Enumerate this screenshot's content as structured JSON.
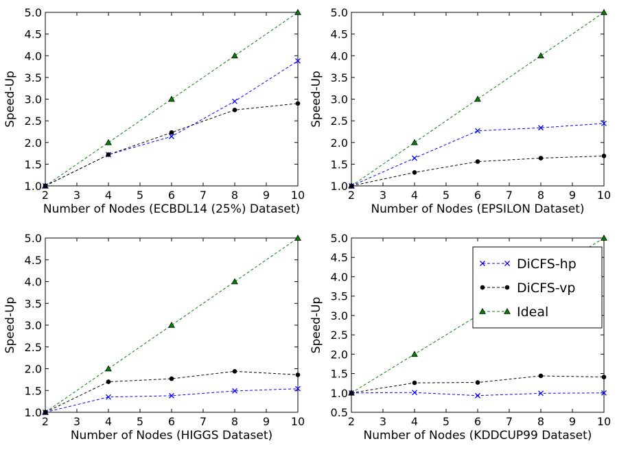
{
  "colors": {
    "hp": "#0000ff",
    "vp": "#000000",
    "ideal": "#008000",
    "axes": "#000000",
    "background": "#ffffff"
  },
  "legend": {
    "placement": "upper-right of the fourth panel",
    "entries": [
      {
        "key": "hp",
        "label": "DiCFS-hp",
        "marker": "x"
      },
      {
        "key": "vp",
        "label": "DiCFS-vp",
        "marker": "circle"
      },
      {
        "key": "ideal",
        "label": "Ideal",
        "marker": "triangle"
      }
    ]
  },
  "chart_data": [
    {
      "type": "line",
      "xlabel": "Number of Nodes (ECBDL14 (25%) Dataset)",
      "ylabel": "Speed-Up",
      "xlim": [
        2,
        10
      ],
      "ylim": [
        1.0,
        5.0
      ],
      "xticks": [
        "2",
        "3",
        "4",
        "5",
        "6",
        "7",
        "8",
        "9",
        "10"
      ],
      "yticks": [
        "1.0",
        "1.5",
        "2.0",
        "2.5",
        "3.0",
        "3.5",
        "4.0",
        "4.5",
        "5.0"
      ],
      "x": [
        2,
        4,
        6,
        8,
        10
      ],
      "series": [
        {
          "name": "DiCFS-hp",
          "key": "hp",
          "values": [
            1.0,
            1.72,
            2.14,
            2.95,
            3.88
          ]
        },
        {
          "name": "DiCFS-vp",
          "key": "vp",
          "values": [
            1.0,
            1.72,
            2.23,
            2.75,
            2.9
          ]
        },
        {
          "name": "Ideal",
          "key": "ideal",
          "values": [
            1.0,
            2.0,
            3.0,
            4.0,
            5.0
          ]
        }
      ]
    },
    {
      "type": "line",
      "xlabel": "Number of Nodes (EPSILON Dataset)",
      "ylabel": "Speed-Up",
      "xlim": [
        2,
        10
      ],
      "ylim": [
        1.0,
        5.0
      ],
      "xticks": [
        "2",
        "3",
        "4",
        "5",
        "6",
        "7",
        "8",
        "9",
        "10"
      ],
      "yticks": [
        "1.0",
        "1.5",
        "2.0",
        "2.5",
        "3.0",
        "3.5",
        "4.0",
        "4.5",
        "5.0"
      ],
      "x": [
        2,
        4,
        6,
        8,
        10
      ],
      "series": [
        {
          "name": "DiCFS-hp",
          "key": "hp",
          "values": [
            1.0,
            1.64,
            2.27,
            2.34,
            2.44
          ]
        },
        {
          "name": "DiCFS-vp",
          "key": "vp",
          "values": [
            1.0,
            1.31,
            1.56,
            1.64,
            1.69
          ]
        },
        {
          "name": "Ideal",
          "key": "ideal",
          "values": [
            1.0,
            2.0,
            3.0,
            4.0,
            5.0
          ]
        }
      ]
    },
    {
      "type": "line",
      "xlabel": "Number of Nodes (HIGGS Dataset)",
      "ylabel": "Speed-Up",
      "xlim": [
        2,
        10
      ],
      "ylim": [
        1.0,
        5.0
      ],
      "xticks": [
        "2",
        "3",
        "4",
        "5",
        "6",
        "7",
        "8",
        "9",
        "10"
      ],
      "yticks": [
        "1.0",
        "1.5",
        "2.0",
        "2.5",
        "3.0",
        "3.5",
        "4.0",
        "4.5",
        "5.0"
      ],
      "x": [
        2,
        4,
        6,
        8,
        10
      ],
      "series": [
        {
          "name": "DiCFS-hp",
          "key": "hp",
          "values": [
            1.0,
            1.35,
            1.38,
            1.49,
            1.54
          ]
        },
        {
          "name": "DiCFS-vp",
          "key": "vp",
          "values": [
            1.0,
            1.7,
            1.77,
            1.94,
            1.86
          ]
        },
        {
          "name": "Ideal",
          "key": "ideal",
          "values": [
            1.0,
            2.0,
            3.0,
            4.0,
            5.0
          ]
        }
      ]
    },
    {
      "type": "line",
      "xlabel": "Number of Nodes (KDDCUP99 Dataset)",
      "ylabel": "Speed-Up",
      "xlim": [
        2,
        10
      ],
      "ylim": [
        0.5,
        5.0
      ],
      "xticks": [
        "2",
        "3",
        "4",
        "5",
        "6",
        "7",
        "8",
        "9",
        "10"
      ],
      "yticks": [
        "0.5",
        "1.0",
        "1.5",
        "2.0",
        "2.5",
        "3.0",
        "3.5",
        "4.0",
        "4.5",
        "5.0"
      ],
      "x": [
        2,
        4,
        6,
        8,
        10
      ],
      "series": [
        {
          "name": "DiCFS-hp",
          "key": "hp",
          "values": [
            1.0,
            1.01,
            0.93,
            0.99,
            1.0
          ]
        },
        {
          "name": "DiCFS-vp",
          "key": "vp",
          "values": [
            1.0,
            1.26,
            1.27,
            1.44,
            1.41
          ]
        },
        {
          "name": "Ideal",
          "key": "ideal",
          "values": [
            1.0,
            2.0,
            3.0,
            4.0,
            5.0
          ]
        }
      ]
    }
  ]
}
